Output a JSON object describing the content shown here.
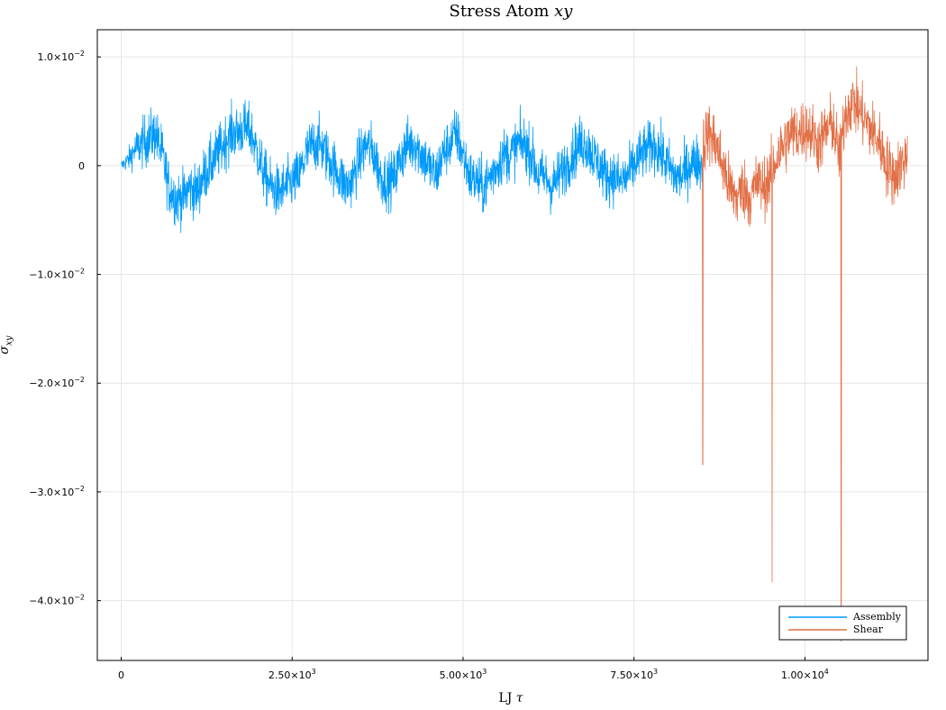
{
  "chart_data": {
    "type": "line",
    "title_prefix": "Stress Atom ",
    "title_var": "xy",
    "xlabel_prefix": "LJ ",
    "xlabel_var": "τ",
    "ylabel": "σ",
    "ylabel_sub": "xy",
    "xlim": [
      -350,
      11800
    ],
    "ylim": [
      -0.0455,
      0.0125
    ],
    "x_ticks": [
      {
        "value": 0,
        "mant": "0",
        "exp": ""
      },
      {
        "value": 2500,
        "mant": "2.50×10",
        "exp": "3"
      },
      {
        "value": 5000,
        "mant": "5.00×10",
        "exp": "3"
      },
      {
        "value": 7500,
        "mant": "7.50×10",
        "exp": "3"
      },
      {
        "value": 10000,
        "mant": "1.00×10",
        "exp": "4"
      }
    ],
    "y_ticks": [
      {
        "value": 0.01,
        "mant": "1.0×10",
        "exp": "−2"
      },
      {
        "value": 0,
        "mant": "0",
        "exp": ""
      },
      {
        "value": -0.01,
        "mant": "−1.0×10",
        "exp": "−2"
      },
      {
        "value": -0.02,
        "mant": "−2.0×10",
        "exp": "−2"
      },
      {
        "value": -0.03,
        "mant": "−3.0×10",
        "exp": "−2"
      },
      {
        "value": -0.04,
        "mant": "−4.0×10",
        "exp": "−2"
      }
    ],
    "series": [
      {
        "name": "Assembly",
        "color": "#009AFA",
        "x": [
          0,
          100,
          200,
          300,
          400,
          500,
          600,
          700,
          800,
          900,
          1000,
          1100,
          1200,
          1300,
          1400,
          1500,
          1600,
          1700,
          1800,
          1900,
          2000,
          2100,
          2200,
          2300,
          2400,
          2500,
          2600,
          2700,
          2800,
          2900,
          3000,
          3100,
          3200,
          3300,
          3400,
          3500,
          3600,
          3700,
          3800,
          3900,
          4000,
          4100,
          4200,
          4300,
          4400,
          4500,
          4600,
          4700,
          4800,
          4900,
          5000,
          5100,
          5200,
          5300,
          5400,
          5500,
          5600,
          5700,
          5800,
          5900,
          6000,
          6100,
          6200,
          6300,
          6400,
          6500,
          6600,
          6700,
          6800,
          6900,
          7000,
          7100,
          7200,
          7300,
          7400,
          7500,
          7600,
          7700,
          7800,
          7900,
          8000,
          8100,
          8200,
          8300,
          8400,
          8500
        ],
        "y": [
          0,
          0.0005,
          0.0015,
          0.002,
          0.0025,
          0.003,
          0.001,
          -0.002,
          -0.003,
          -0.003,
          -0.002,
          -0.0025,
          -0.001,
          0,
          0.001,
          0.002,
          0.003,
          0.003,
          0.0035,
          0.003,
          0.001,
          -0.001,
          -0.002,
          -0.0025,
          -0.002,
          -0.0015,
          -0.001,
          0.001,
          0.002,
          0.002,
          0.001,
          0,
          -0.001,
          -0.002,
          -0.001,
          0.001,
          0.002,
          0.001,
          -0.001,
          -0.0015,
          -0.001,
          0.001,
          0.002,
          0.002,
          0.001,
          0,
          -0.001,
          0.001,
          0.002,
          0.003,
          0.001,
          -0.001,
          -0.0015,
          -0.002,
          -0.001,
          0,
          0.001,
          0.001,
          0.002,
          0.002,
          0.001,
          -0.001,
          -0.001,
          -0.002,
          -0.001,
          0,
          0.001,
          0.002,
          0.002,
          0.001,
          0,
          -0.001,
          -0.001,
          -0.0015,
          -0.001,
          0,
          0.001,
          0.0015,
          0.002,
          0.001,
          0,
          -0.001,
          -0.001,
          0,
          0.0005,
          0
        ]
      },
      {
        "name": "Shear",
        "color": "#E26F46",
        "x": [
          8500,
          8600,
          8700,
          8800,
          8900,
          9000,
          9100,
          9200,
          9300,
          9400,
          9500,
          9600,
          9700,
          9800,
          9900,
          10000,
          10100,
          10200,
          10300,
          10400,
          10500,
          10600,
          10700,
          10800,
          10900,
          11000,
          11100,
          11200,
          11300,
          11400,
          11500
        ],
        "y": [
          0.002,
          0.003,
          0.002,
          0,
          -0.002,
          -0.003,
          -0.002,
          -0.003,
          -0.0015,
          -0.002,
          -0.001,
          0.001,
          0.002,
          0.003,
          0.003,
          0.0035,
          0.003,
          0.002,
          0.003,
          0.004,
          0.001,
          0.005,
          0.006,
          0.005,
          0.004,
          0.003,
          0.002,
          0,
          -0.001,
          0,
          0.001
        ]
      }
    ],
    "spikes": [
      {
        "series": 1,
        "x": 8505,
        "y": -0.0275
      },
      {
        "series": 1,
        "x": 9520,
        "y": -0.0383
      },
      {
        "series": 1,
        "x": 10530,
        "y": -0.0437
      }
    ]
  }
}
